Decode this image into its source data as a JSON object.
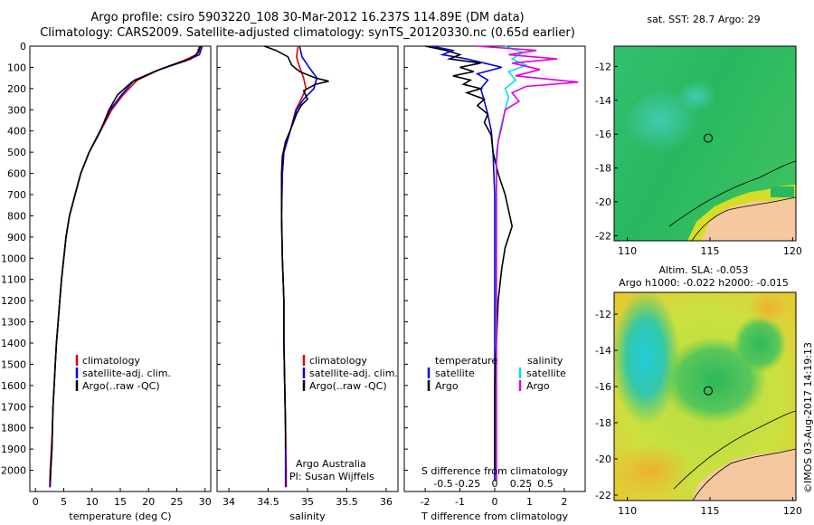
{
  "header": {
    "line1": "Argo profile: csiro 5903220_108 30-Mar-2012 16.237S 114.89E (DM data)",
    "line2": "Climatology: CARS2009. Satellite-adjusted climatology: synTS_20120330.nc (0.65d earlier)"
  },
  "depth_axis": {
    "ticks": [
      0,
      100,
      200,
      300,
      400,
      500,
      600,
      700,
      800,
      900,
      1000,
      1100,
      1200,
      1300,
      1400,
      1500,
      1600,
      1700,
      1800,
      1900,
      2000
    ]
  },
  "colors": {
    "climatology": "#e00000",
    "satellite": "#0000e0",
    "argo": "#000000",
    "sat_salinity": "#00e0e0",
    "argo_salinity": "#e000e0",
    "land": "#f5c8a0"
  },
  "chart_data": [
    {
      "type": "line",
      "id": "temperature",
      "xlabel": "temperature (deg C)",
      "xlim": [
        -1,
        31
      ],
      "ylim": [
        0,
        2100
      ],
      "xticks": [
        0,
        5,
        10,
        15,
        20,
        25,
        30
      ],
      "legend": [
        "climatology",
        "satellite-adj. clim.",
        "Argo(..raw -QC)"
      ],
      "series": [
        {
          "name": "climatology",
          "color": "#e00000",
          "points": [
            [
              29,
              0
            ],
            [
              28.5,
              40
            ],
            [
              26,
              70
            ],
            [
              22,
              110
            ],
            [
              18,
              160
            ],
            [
              15.5,
              230
            ],
            [
              13.5,
              300
            ],
            [
              11.5,
              400
            ],
            [
              9.5,
              500
            ],
            [
              8,
              600
            ],
            [
              7,
              700
            ],
            [
              6,
              800
            ],
            [
              5.4,
              900
            ],
            [
              5,
              1000
            ],
            [
              4.6,
              1100
            ],
            [
              4.3,
              1200
            ],
            [
              4,
              1300
            ],
            [
              3.7,
              1400
            ],
            [
              3.5,
              1500
            ],
            [
              3.3,
              1600
            ],
            [
              3.1,
              1700
            ],
            [
              3,
              1800
            ],
            [
              2.8,
              1900
            ],
            [
              2.6,
              2000
            ],
            [
              2.5,
              2080
            ]
          ]
        },
        {
          "name": "satellite-adj. clim.",
          "color": "#0000e0",
          "points": [
            [
              29.5,
              0
            ],
            [
              29,
              40
            ],
            [
              26.5,
              70
            ],
            [
              22,
              110
            ],
            [
              17.5,
              160
            ],
            [
              15.2,
              230
            ],
            [
              13.2,
              300
            ],
            [
              11.4,
              400
            ],
            [
              9.5,
              500
            ],
            [
              8,
              600
            ],
            [
              7,
              700
            ],
            [
              6,
              800
            ],
            [
              5.4,
              900
            ],
            [
              5,
              1000
            ],
            [
              4.6,
              1100
            ],
            [
              4.3,
              1200
            ],
            [
              4,
              1300
            ],
            [
              3.7,
              1400
            ],
            [
              3.5,
              1500
            ],
            [
              3.3,
              1600
            ],
            [
              3.1,
              1700
            ],
            [
              3,
              1800
            ],
            [
              2.9,
              1900
            ],
            [
              2.7,
              2000
            ],
            [
              2.6,
              2080
            ]
          ]
        },
        {
          "name": "Argo(..raw -QC)",
          "color": "#000000",
          "points": [
            [
              29.2,
              0
            ],
            [
              28.8,
              30
            ],
            [
              27.5,
              60
            ],
            [
              24,
              90
            ],
            [
              21,
              120
            ],
            [
              17,
              170
            ],
            [
              14.5,
              230
            ],
            [
              13,
              300
            ],
            [
              11.5,
              400
            ],
            [
              9.5,
              500
            ],
            [
              8,
              600
            ],
            [
              7,
              700
            ],
            [
              6,
              800
            ],
            [
              5.4,
              900
            ],
            [
              5,
              1000
            ],
            [
              4.6,
              1100
            ],
            [
              4.3,
              1200
            ],
            [
              4,
              1300
            ],
            [
              3.7,
              1400
            ],
            [
              3.5,
              1500
            ],
            [
              3.3,
              1600
            ],
            [
              3.1,
              1700
            ],
            [
              3,
              1800
            ],
            [
              2.9,
              1900
            ],
            [
              2.7,
              2000
            ],
            [
              2.6,
              2050
            ]
          ]
        }
      ]
    },
    {
      "type": "line",
      "id": "salinity",
      "xlabel": "salinity",
      "xlim": [
        33.85,
        36.15
      ],
      "ylim": [
        0,
        2100
      ],
      "xticks": [
        34,
        34.5,
        35,
        35.5,
        36
      ],
      "legend": [
        "climatology",
        "satellite-adj. clim.",
        "Argo(..raw -QC)"
      ],
      "annotation": [
        "Argo Australia",
        "PI: Susan Wijffels"
      ],
      "series": [
        {
          "name": "climatology",
          "color": "#e00000",
          "points": [
            [
              34.88,
              0
            ],
            [
              34.86,
              50
            ],
            [
              34.9,
              100
            ],
            [
              34.95,
              150
            ],
            [
              34.98,
              200
            ],
            [
              34.92,
              250
            ],
            [
              34.85,
              300
            ],
            [
              34.78,
              400
            ],
            [
              34.7,
              500
            ],
            [
              34.68,
              600
            ],
            [
              34.67,
              800
            ],
            [
              34.68,
              1000
            ],
            [
              34.7,
              1200
            ],
            [
              34.7,
              1400
            ],
            [
              34.71,
              1600
            ],
            [
              34.72,
              1800
            ],
            [
              34.73,
              2000
            ],
            [
              34.73,
              2080
            ]
          ]
        },
        {
          "name": "satellite-adj. clim.",
          "color": "#0000e0",
          "points": [
            [
              34.9,
              0
            ],
            [
              34.93,
              50
            ],
            [
              35.02,
              100
            ],
            [
              35.12,
              150
            ],
            [
              35.08,
              200
            ],
            [
              34.95,
              250
            ],
            [
              34.86,
              300
            ],
            [
              34.78,
              400
            ],
            [
              34.7,
              500
            ],
            [
              34.68,
              600
            ],
            [
              34.67,
              800
            ],
            [
              34.68,
              1000
            ],
            [
              34.7,
              1200
            ],
            [
              34.7,
              1400
            ],
            [
              34.71,
              1600
            ],
            [
              34.72,
              1800
            ],
            [
              34.72,
              2000
            ],
            [
              34.72,
              2080
            ]
          ]
        },
        {
          "name": "Argo(..raw -QC)",
          "color": "#000000",
          "points": [
            [
              34.45,
              0
            ],
            [
              34.6,
              20
            ],
            [
              34.75,
              50
            ],
            [
              34.8,
              90
            ],
            [
              34.9,
              120
            ],
            [
              35.1,
              150
            ],
            [
              35.27,
              165
            ],
            [
              35.1,
              180
            ],
            [
              34.95,
              210
            ],
            [
              35.0,
              250
            ],
            [
              34.92,
              280
            ],
            [
              34.86,
              320
            ],
            [
              34.8,
              380
            ],
            [
              34.72,
              450
            ],
            [
              34.68,
              520
            ],
            [
              34.67,
              600
            ],
            [
              34.67,
              800
            ],
            [
              34.68,
              1000
            ],
            [
              34.7,
              1200
            ],
            [
              34.7,
              1400
            ],
            [
              34.71,
              1600
            ],
            [
              34.72,
              1800
            ],
            [
              34.72,
              1900
            ]
          ]
        }
      ]
    },
    {
      "type": "line",
      "id": "difference",
      "xlabel": "T difference from climatology",
      "xlabel_top": "S difference from climatology",
      "xlim": [
        -2.6,
        2.6
      ],
      "ylim": [
        0,
        2100
      ],
      "xticks": [
        -2,
        -1,
        0,
        1,
        2
      ],
      "sticks": [
        "-0.5",
        "-0.25",
        "0",
        "0.25",
        "0.5"
      ],
      "legend": {
        "temperature": [
          "satellite",
          "Argo"
        ],
        "salinity": [
          "satellite",
          "Argo"
        ],
        "temperature_title": "temperature",
        "salinity_title": "salinity"
      },
      "series": [
        {
          "name": "T satellite",
          "color": "#0000e0",
          "points": [
            [
              -1.8,
              0
            ],
            [
              -1.2,
              20
            ],
            [
              -1.5,
              40
            ],
            [
              -0.8,
              60
            ],
            [
              -0.3,
              80
            ],
            [
              0.2,
              100
            ],
            [
              -0.5,
              130
            ],
            [
              -0.2,
              160
            ],
            [
              -0.4,
              200
            ],
            [
              -0.3,
              260
            ],
            [
              -0.2,
              320
            ],
            [
              -0.1,
              400
            ],
            [
              -0.05,
              500
            ],
            [
              0,
              700
            ],
            [
              0,
              900
            ],
            [
              0,
              1100
            ],
            [
              0,
              1300
            ],
            [
              0,
              1500
            ],
            [
              0,
              1700
            ],
            [
              0,
              1900
            ],
            [
              0,
              2050
            ]
          ]
        },
        {
          "name": "T Argo",
          "color": "#000000",
          "points": [
            [
              -2,
              0
            ],
            [
              -1.4,
              20
            ],
            [
              -1.0,
              40
            ],
            [
              -1.3,
              60
            ],
            [
              -0.4,
              80
            ],
            [
              -1.0,
              100
            ],
            [
              -0.6,
              120
            ],
            [
              -1.2,
              140
            ],
            [
              -0.7,
              160
            ],
            [
              -0.9,
              180
            ],
            [
              -0.4,
              200
            ],
            [
              -0.8,
              220
            ],
            [
              -0.3,
              250
            ],
            [
              -0.5,
              280
            ],
            [
              -0.2,
              320
            ],
            [
              -0.3,
              360
            ],
            [
              -0.1,
              420
            ],
            [
              -0.05,
              500
            ],
            [
              0.1,
              600
            ],
            [
              0.3,
              700
            ],
            [
              0.5,
              850
            ],
            [
              0.3,
              950
            ],
            [
              0.2,
              1050
            ],
            [
              0.1,
              1200
            ],
            [
              0.05,
              1400
            ],
            [
              0,
              1600
            ],
            [
              0,
              1800
            ],
            [
              0,
              2000
            ]
          ]
        },
        {
          "name": "S satellite",
          "color": "#00e0e0",
          "points": [
            [
              0.3,
              0
            ],
            [
              0.8,
              30
            ],
            [
              0.5,
              60
            ],
            [
              0.9,
              90
            ],
            [
              0.4,
              120
            ],
            [
              0.6,
              160
            ],
            [
              0.3,
              200
            ],
            [
              0.4,
              240
            ],
            [
              0.3,
              300
            ],
            [
              0.15,
              400
            ],
            [
              0.05,
              500
            ],
            [
              0.05,
              700
            ],
            [
              0.05,
              900
            ],
            [
              0.05,
              1100
            ],
            [
              0.05,
              1300
            ],
            [
              0.05,
              1500
            ],
            [
              0.05,
              1700
            ],
            [
              0.05,
              1900
            ],
            [
              0.05,
              2050
            ]
          ]
        },
        {
          "name": "S Argo",
          "color": "#e000e0",
          "points": [
            [
              -0.5,
              0
            ],
            [
              1.2,
              20
            ],
            [
              0.4,
              40
            ],
            [
              1.8,
              60
            ],
            [
              0.5,
              80
            ],
            [
              1.3,
              110
            ],
            [
              0.6,
              140
            ],
            [
              2.4,
              170
            ],
            [
              0.9,
              190
            ],
            [
              0.5,
              220
            ],
            [
              0.7,
              260
            ],
            [
              0.3,
              300
            ],
            [
              0.2,
              380
            ],
            [
              0.1,
              450
            ],
            [
              0.05,
              550
            ],
            [
              0.05,
              700
            ],
            [
              0.05,
              900
            ],
            [
              0.05,
              1100
            ],
            [
              0.05,
              1300
            ],
            [
              0.05,
              1500
            ],
            [
              0.05,
              1700
            ],
            [
              0.05,
              1900
            ],
            [
              0.05,
              2050
            ]
          ]
        }
      ]
    },
    {
      "type": "heatmap",
      "id": "sst-map",
      "title": "sat. SST: 28.7 Argo: 29",
      "xlim": [
        109.2,
        120.2
      ],
      "ylim": [
        -22.3,
        -10.8
      ],
      "xticks": [
        110,
        115,
        120
      ],
      "yticks": [
        -12,
        -14,
        -16,
        -18,
        -20,
        -22
      ],
      "marker": [
        114.89,
        -16.237
      ]
    },
    {
      "type": "heatmap",
      "id": "sla-map",
      "title_line1": "Altim. SLA: -0.053",
      "title_line2": "Argo h1000: -0.022 h2000: -0.015",
      "xlim": [
        109.2,
        120.2
      ],
      "ylim": [
        -22.3,
        -10.8
      ],
      "xticks": [
        110,
        115,
        120
      ],
      "yticks": [
        -12,
        -14,
        -16,
        -18,
        -20,
        -22
      ],
      "marker": [
        114.89,
        -16.237
      ]
    }
  ],
  "footer": {
    "stamp": "©IMOS 03-Aug-2017 14:19:13"
  }
}
